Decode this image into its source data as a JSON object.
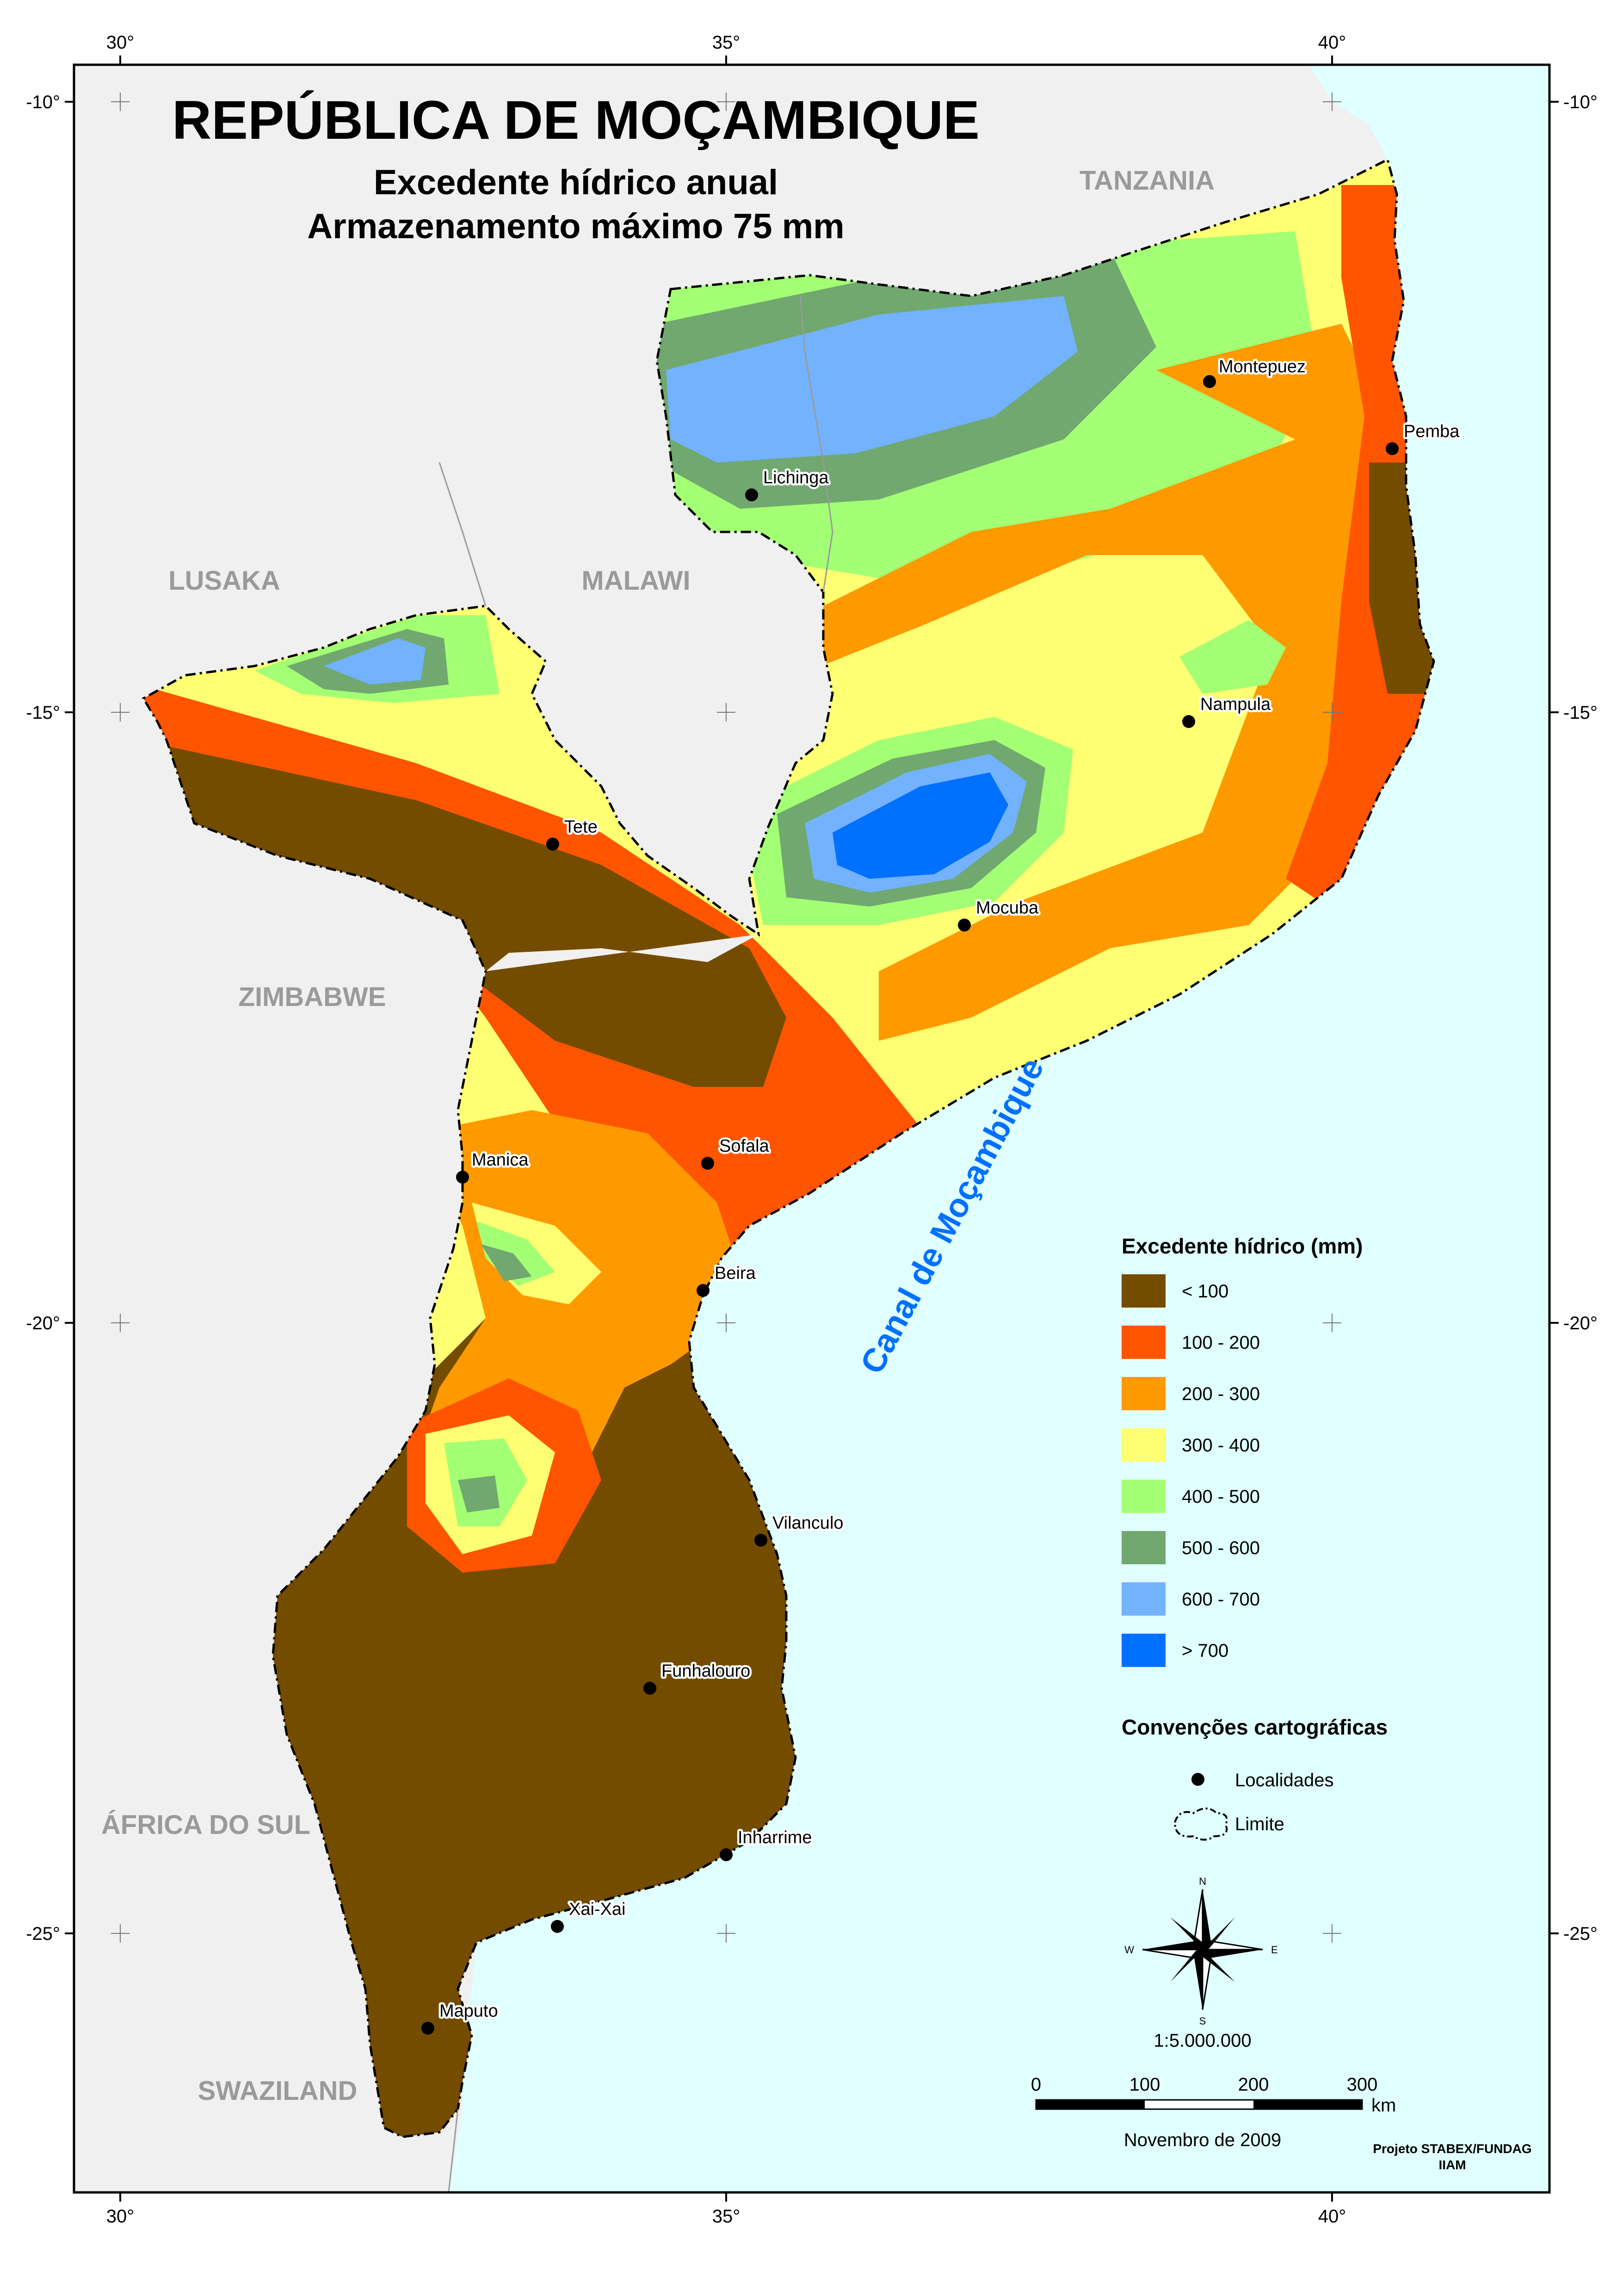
{
  "title": "REPÚBLICA DE MOÇAMBIQUE",
  "subtitle_line1": "Excedente hídrico anual",
  "subtitle_line2": "Armazenamento máximo 75 mm",
  "axis": {
    "longitudes": [
      "30°",
      "35°",
      "40°"
    ],
    "latitudes": [
      "-10°",
      "-15°",
      "-20°",
      "-25°"
    ]
  },
  "countries": {
    "tanzania": "TANZANIA",
    "lusaka": "LUSAKA",
    "malawi": "MALAWI",
    "zimbabwe": "ZIMBABWE",
    "south_africa": "ÁFRICA DO SUL",
    "swaziland": "SWAZILAND"
  },
  "sea_label": "Canal de Moçambique",
  "cities": {
    "montepuez": "Montepuez",
    "pemba": "Pemba",
    "lichinga": "Lichinga",
    "nampula": "Nampula",
    "tete": "Tete",
    "mocuba": "Mocuba",
    "manica": "Manica",
    "sofala": "Sofala",
    "beira": "Beira",
    "vilanculo": "Vilanculo",
    "funhalouro": "Funhalouro",
    "inharrime": "Inharrime",
    "xai_xai": "Xai-Xai",
    "maputo": "Maputo"
  },
  "legend": {
    "title": "Excedente hídrico (mm)",
    "classes": [
      {
        "label": "< 100",
        "color": "#734C00"
      },
      {
        "label": "100 - 200",
        "color": "#FF5500"
      },
      {
        "label": "200 - 300",
        "color": "#FF9900"
      },
      {
        "label": "300 - 400",
        "color": "#FFFF73"
      },
      {
        "label": "400 - 500",
        "color": "#A3FF73"
      },
      {
        "label": "500 - 600",
        "color": "#70A870"
      },
      {
        "label": "600 - 700",
        "color": "#73B2FF"
      },
      {
        "label": "> 700",
        "color": "#0070FF"
      }
    ]
  },
  "conventions": {
    "title": "Convenções cartográficas",
    "localities": "Localidades",
    "limit": "Limite"
  },
  "compass": {
    "n": "N",
    "s": "S",
    "e": "E",
    "w": "W"
  },
  "scale": {
    "ratio": "1:5.000.000",
    "ticks": [
      "0",
      "100",
      "200",
      "300"
    ],
    "unit": "km"
  },
  "date": "Novembro de 2009",
  "credits_line1": "Projeto STABEX/FUNDAG",
  "credits_line2": "IIAM",
  "colors": {
    "sea": "#E0FFFF",
    "land_outside": "#F0F0F0"
  }
}
